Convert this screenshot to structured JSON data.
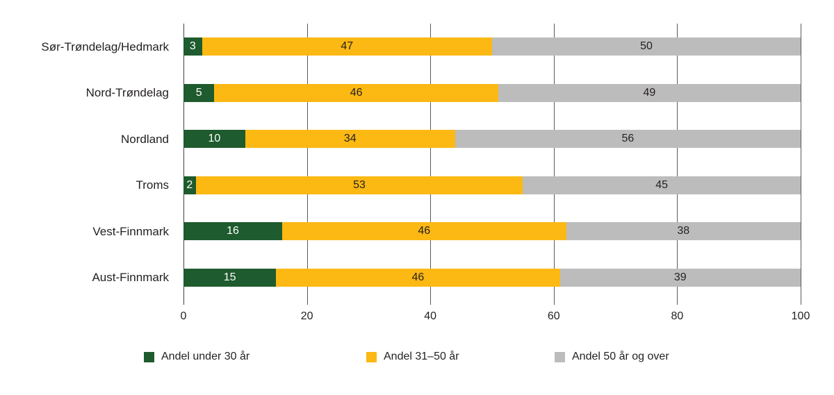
{
  "chart_data": {
    "type": "bar",
    "orientation": "horizontal",
    "stacked": true,
    "title": "",
    "categories": [
      "Sør-Trøndelag/Hedmark",
      "Nord-Trøndelag",
      "Nordland",
      "Troms",
      "Vest-Finnmark",
      "Aust-Finnmark"
    ],
    "series": [
      {
        "name": "Andel under 30 år",
        "color": "#1e5b2e",
        "label_color": "#ffffff",
        "values": [
          3,
          5,
          10,
          2,
          16,
          15
        ]
      },
      {
        "name": "Andel 31–50 år",
        "color": "#fcb813",
        "label_color": "#231f20",
        "values": [
          47,
          46,
          34,
          53,
          46,
          46
        ]
      },
      {
        "name": "Andel 50 år og over",
        "color": "#bdbcbc",
        "label_color": "#231f20",
        "values": [
          50,
          49,
          56,
          45,
          38,
          39
        ]
      }
    ],
    "x_axis": {
      "min": 0,
      "max": 100,
      "ticks": [
        0,
        20,
        40,
        60,
        80,
        100
      ]
    },
    "xlabel": "",
    "ylabel": "",
    "grid": true,
    "legend_position": "bottom",
    "data_labels": "inside-center"
  }
}
